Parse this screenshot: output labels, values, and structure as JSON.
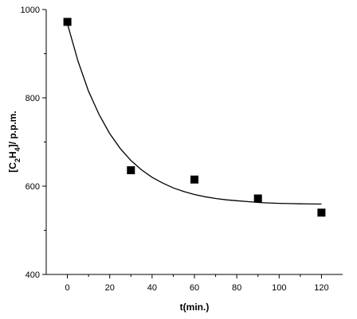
{
  "chart_data": {
    "type": "scatter",
    "title": "",
    "xlabel": "t(min.)",
    "ylabel": {
      "prefix": "[C",
      "sub1": "2",
      "mid": "H",
      "sub2": "4",
      "suffix": "]/ p.p.m."
    },
    "xlim": [
      -10,
      130
    ],
    "ylim": [
      400,
      1000
    ],
    "x_ticks": [
      0,
      20,
      40,
      60,
      80,
      100,
      120
    ],
    "y_ticks": [
      400,
      600,
      800,
      1000
    ],
    "grid": false,
    "series": [
      {
        "kind": "points",
        "marker": "square",
        "color": "#000000",
        "x": [
          0,
          30,
          60,
          90,
          120
        ],
        "y": [
          972,
          636,
          615,
          572,
          540
        ]
      },
      {
        "kind": "fit-curve",
        "color": "#000000",
        "x": [
          0,
          5,
          10,
          15,
          20,
          25,
          30,
          35,
          40,
          45,
          50,
          55,
          60,
          65,
          70,
          75,
          80,
          85,
          90,
          95,
          100,
          105,
          110,
          115,
          120
        ],
        "y": [
          968,
          883,
          815,
          762,
          719,
          685,
          658,
          637,
          620,
          607,
          596,
          588,
          581,
          576,
          572,
          569,
          567,
          565,
          563,
          562,
          561,
          560.5,
          560,
          559.7,
          559.5
        ]
      }
    ]
  }
}
